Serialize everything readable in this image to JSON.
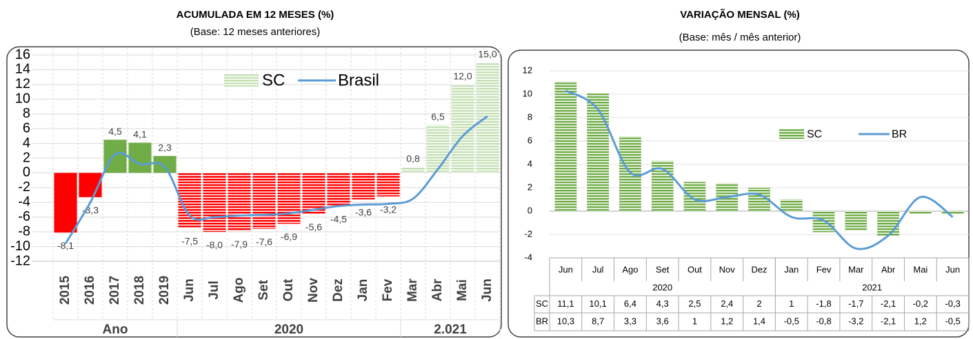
{
  "chart_data": [
    {
      "type": "bar",
      "title": "ACUMULADA EM 12 MESES (%)",
      "subtitle": "(Base: 12 meses anteriores)",
      "groups": [
        {
          "label": "Ano",
          "categories": [
            "2015",
            "2016",
            "2017",
            "2018",
            "2019"
          ]
        },
        {
          "label": "2020",
          "categories": [
            "Jun",
            "Jul",
            "Ago",
            "Set",
            "Out",
            "Nov",
            "Dez",
            "Jan",
            "Fev"
          ]
        },
        {
          "label": "2.021",
          "categories": [
            "Mar",
            "Abr",
            "Mai",
            "Jun"
          ]
        }
      ],
      "series": [
        {
          "name": "SC",
          "type": "bar",
          "color": "#c5e0b4",
          "values": [
            -8.1,
            -3.3,
            4.5,
            4.1,
            2.3,
            -7.5,
            -8.0,
            -7.9,
            -7.6,
            -6.9,
            -5.6,
            -4.5,
            -3.6,
            -3.2,
            0.8,
            6.5,
            12.0,
            15.0
          ],
          "value_labels": [
            "-8,1",
            "-3,3",
            "4,5",
            "4,1",
            "2,3",
            "-7,5",
            "-8,0",
            "-7,9",
            "-7,6",
            "-6,9",
            "-5,6",
            "-4,5",
            "-3,6",
            "-3,2",
            "0,8",
            "6,5",
            "12,0",
            "15,0"
          ],
          "bar_colors": [
            "#ff0000",
            "#ff0000",
            "#70ad47",
            "#70ad47",
            "#70ad47",
            "#ff0000",
            "#ff0000",
            "#ff0000",
            "#ff0000",
            "#ff0000",
            "#ff0000",
            "#ff0000",
            "#ff0000",
            "#ff0000",
            "#c5e0b4",
            "#c5e0b4",
            "#c5e0b4",
            "#c5e0b4"
          ],
          "hatched": [
            false,
            false,
            false,
            false,
            false,
            true,
            true,
            true,
            true,
            true,
            true,
            true,
            true,
            true,
            true,
            true,
            true,
            true
          ]
        },
        {
          "name": "Brasil",
          "type": "line",
          "color": "#5b9bd5",
          "values": [
            -9.6,
            -4.0,
            2.5,
            1.2,
            0.8,
            -5.8,
            -6.0,
            -5.8,
            -5.7,
            -5.5,
            -5.0,
            -4.5,
            -4.3,
            -4.2,
            -3.5,
            0.5,
            5.0,
            7.7
          ]
        }
      ],
      "ylim": [
        -12,
        16
      ],
      "yticks": [
        -12,
        -10,
        -8,
        -6,
        -4,
        -2,
        0,
        2,
        4,
        6,
        8,
        10,
        12,
        14,
        16
      ],
      "grid": true
    },
    {
      "type": "bar",
      "title": "VARIAÇÃO MENSAL (%)",
      "subtitle": "(Base: mês / mês anterior)",
      "groups": [
        {
          "label": "2020",
          "categories": [
            "Jun",
            "Jul",
            "Ago",
            "Set",
            "Out",
            "Nov",
            "Dez"
          ]
        },
        {
          "label": "2021",
          "categories": [
            "Jan",
            "Fev",
            "Mar",
            "Abr",
            "Mai",
            "Jun"
          ]
        }
      ],
      "series": [
        {
          "name": "SC",
          "type": "bar",
          "color": "#70ad47",
          "hatched": true,
          "values": [
            11.1,
            10.1,
            6.4,
            4.3,
            2.5,
            2.4,
            2,
            1,
            -1.8,
            -1.7,
            -2.1,
            -0.2,
            -0.3
          ],
          "value_labels": [
            "11,1",
            "10,1",
            "6,4",
            "4,3",
            "2,5",
            "2,4",
            "2",
            "1",
            "-1,8",
            "-1,7",
            "-2,1",
            "-0,2",
            "-0,3"
          ]
        },
        {
          "name": "BR",
          "type": "line",
          "color": "#5b9bd5",
          "values": [
            10.3,
            8.7,
            3.3,
            3.6,
            1,
            1.2,
            1.4,
            -0.5,
            -0.8,
            -3.2,
            -2.1,
            1.2,
            -0.5
          ],
          "value_labels": [
            "10,3",
            "8,7",
            "3,3",
            "3,6",
            "1",
            "1,2",
            "1,4",
            "-0,5",
            "-0,8",
            "-3,2",
            "-2,1",
            "1,2",
            "-0,5"
          ]
        }
      ],
      "ylim": [
        -4,
        12
      ],
      "yticks": [
        -4,
        -2,
        0,
        2,
        4,
        6,
        8,
        10,
        12
      ],
      "grid": true
    }
  ]
}
